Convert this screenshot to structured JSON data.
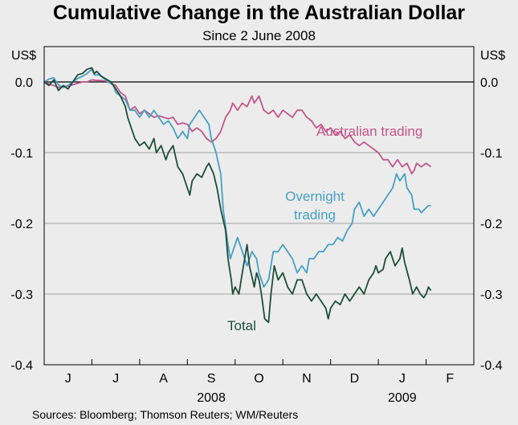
{
  "chart_data": {
    "type": "line",
    "title": "Cumulative Change in the Australian Dollar",
    "subtitle": "Since 2 June 2008",
    "unit_left": "US$",
    "unit_right": "US$",
    "ylim": [
      -0.4,
      0.05
    ],
    "yticks": [
      0.0,
      -0.1,
      -0.2,
      -0.3,
      -0.4
    ],
    "ytick_labels": [
      "0.0",
      "-0.1",
      "-0.2",
      "-0.3",
      "-0.4"
    ],
    "x_start_month_index": 0,
    "x_end_month_index": 9,
    "months": [
      {
        "label": "J",
        "index": 0
      },
      {
        "label": "J",
        "index": 1
      },
      {
        "label": "A",
        "index": 2
      },
      {
        "label": "S",
        "index": 3
      },
      {
        "label": "O",
        "index": 4
      },
      {
        "label": "N",
        "index": 5
      },
      {
        "label": "D",
        "index": 6
      },
      {
        "label": "J",
        "index": 7
      },
      {
        "label": "F",
        "index": 8
      }
    ],
    "years": [
      {
        "label": "2008",
        "position": 3.5
      },
      {
        "label": "2009",
        "position": 7.5
      }
    ],
    "series": [
      {
        "name": "Total",
        "label": "Total",
        "color": "#1e4d3a",
        "points": [
          [
            0,
            0.0
          ],
          [
            0.1,
            -0.005
          ],
          [
            0.2,
            0.003
          ],
          [
            0.3,
            -0.012
          ],
          [
            0.4,
            -0.005
          ],
          [
            0.5,
            -0.01
          ],
          [
            0.6,
            0.0
          ],
          [
            0.7,
            0.01
          ],
          [
            0.8,
            0.012
          ],
          [
            0.9,
            0.018
          ],
          [
            1.0,
            0.02
          ],
          [
            1.05,
            0.012
          ],
          [
            1.1,
            0.015
          ],
          [
            1.2,
            0.008
          ],
          [
            1.3,
            0.004
          ],
          [
            1.4,
            0.0
          ],
          [
            1.5,
            -0.01
          ],
          [
            1.6,
            -0.02
          ],
          [
            1.7,
            -0.035
          ],
          [
            1.75,
            -0.05
          ],
          [
            1.8,
            -0.06
          ],
          [
            1.9,
            -0.08
          ],
          [
            2.0,
            -0.09
          ],
          [
            2.1,
            -0.085
          ],
          [
            2.2,
            -0.095
          ],
          [
            2.3,
            -0.08
          ],
          [
            2.35,
            -0.1
          ],
          [
            2.45,
            -0.09
          ],
          [
            2.55,
            -0.11
          ],
          [
            2.6,
            -0.1
          ],
          [
            2.7,
            -0.09
          ],
          [
            2.8,
            -0.12
          ],
          [
            2.9,
            -0.13
          ],
          [
            3.0,
            -0.15
          ],
          [
            3.05,
            -0.16
          ],
          [
            3.1,
            -0.14
          ],
          [
            3.2,
            -0.13
          ],
          [
            3.3,
            -0.135
          ],
          [
            3.4,
            -0.12
          ],
          [
            3.45,
            -0.115
          ],
          [
            3.55,
            -0.13
          ],
          [
            3.62,
            -0.15
          ],
          [
            3.7,
            -0.18
          ],
          [
            3.8,
            -0.21
          ],
          [
            3.85,
            -0.25
          ],
          [
            3.92,
            -0.28
          ],
          [
            3.95,
            -0.3
          ],
          [
            4.0,
            -0.29
          ],
          [
            4.08,
            -0.3
          ],
          [
            4.15,
            -0.27
          ],
          [
            4.2,
            -0.25
          ],
          [
            4.25,
            -0.23
          ],
          [
            4.3,
            -0.26
          ],
          [
            4.4,
            -0.29
          ],
          [
            4.45,
            -0.27
          ],
          [
            4.5,
            -0.28
          ],
          [
            4.55,
            -0.3
          ],
          [
            4.62,
            -0.335
          ],
          [
            4.7,
            -0.34
          ],
          [
            4.75,
            -0.3
          ],
          [
            4.82,
            -0.26
          ],
          [
            4.9,
            -0.28
          ],
          [
            5.0,
            -0.27
          ],
          [
            5.1,
            -0.29
          ],
          [
            5.2,
            -0.3
          ],
          [
            5.3,
            -0.28
          ],
          [
            5.4,
            -0.28
          ],
          [
            5.5,
            -0.3
          ],
          [
            5.6,
            -0.31
          ],
          [
            5.7,
            -0.3
          ],
          [
            5.8,
            -0.31
          ],
          [
            5.9,
            -0.32
          ],
          [
            5.95,
            -0.335
          ],
          [
            6.0,
            -0.32
          ],
          [
            6.1,
            -0.31
          ],
          [
            6.2,
            -0.315
          ],
          [
            6.3,
            -0.3
          ],
          [
            6.4,
            -0.31
          ],
          [
            6.5,
            -0.3
          ],
          [
            6.6,
            -0.29
          ],
          [
            6.7,
            -0.3
          ],
          [
            6.8,
            -0.28
          ],
          [
            6.9,
            -0.27
          ],
          [
            6.95,
            -0.26
          ],
          [
            7.0,
            -0.27
          ],
          [
            7.1,
            -0.265
          ],
          [
            7.15,
            -0.25
          ],
          [
            7.25,
            -0.24
          ],
          [
            7.35,
            -0.26
          ],
          [
            7.45,
            -0.25
          ],
          [
            7.5,
            -0.235
          ],
          [
            7.55,
            -0.255
          ],
          [
            7.65,
            -0.28
          ],
          [
            7.72,
            -0.3
          ],
          [
            7.8,
            -0.29
          ],
          [
            7.88,
            -0.3
          ],
          [
            7.95,
            -0.305
          ],
          [
            8.0,
            -0.3
          ],
          [
            8.05,
            -0.29
          ],
          [
            8.1,
            -0.295
          ]
        ]
      },
      {
        "name": "Overnight trading",
        "label": "Overnight trading",
        "color": "#46a0c4",
        "points": [
          [
            0,
            0.0
          ],
          [
            0.1,
            0.004
          ],
          [
            0.2,
            0.006
          ],
          [
            0.3,
            -0.004
          ],
          [
            0.4,
            -0.008
          ],
          [
            0.5,
            -0.005
          ],
          [
            0.6,
            0.0
          ],
          [
            0.7,
            0.005
          ],
          [
            0.8,
            0.008
          ],
          [
            0.9,
            0.012
          ],
          [
            1.0,
            0.018
          ],
          [
            1.05,
            0.01
          ],
          [
            1.15,
            0.01
          ],
          [
            1.25,
            0.005
          ],
          [
            1.35,
            0.0
          ],
          [
            1.45,
            -0.005
          ],
          [
            1.5,
            -0.015
          ],
          [
            1.6,
            -0.02
          ],
          [
            1.7,
            -0.025
          ],
          [
            1.8,
            -0.04
          ],
          [
            1.9,
            -0.04
          ],
          [
            2.0,
            -0.05
          ],
          [
            2.1,
            -0.04
          ],
          [
            2.2,
            -0.05
          ],
          [
            2.3,
            -0.04
          ],
          [
            2.4,
            -0.05
          ],
          [
            2.5,
            -0.06
          ],
          [
            2.6,
            -0.055
          ],
          [
            2.7,
            -0.065
          ],
          [
            2.8,
            -0.08
          ],
          [
            2.9,
            -0.07
          ],
          [
            3.0,
            -0.08
          ],
          [
            3.05,
            -0.06
          ],
          [
            3.15,
            -0.05
          ],
          [
            3.25,
            -0.04
          ],
          [
            3.35,
            -0.05
          ],
          [
            3.45,
            -0.06
          ],
          [
            3.5,
            -0.08
          ],
          [
            3.6,
            -0.1
          ],
          [
            3.7,
            -0.13
          ],
          [
            3.75,
            -0.18
          ],
          [
            3.85,
            -0.23
          ],
          [
            3.9,
            -0.25
          ],
          [
            4.0,
            -0.23
          ],
          [
            4.05,
            -0.22
          ],
          [
            4.15,
            -0.24
          ],
          [
            4.25,
            -0.26
          ],
          [
            4.35,
            -0.24
          ],
          [
            4.45,
            -0.25
          ],
          [
            4.5,
            -0.27
          ],
          [
            4.55,
            -0.28
          ],
          [
            4.6,
            -0.29
          ],
          [
            4.7,
            -0.28
          ],
          [
            4.8,
            -0.24
          ],
          [
            4.9,
            -0.24
          ],
          [
            5.0,
            -0.23
          ],
          [
            5.1,
            -0.24
          ],
          [
            5.2,
            -0.25
          ],
          [
            5.3,
            -0.27
          ],
          [
            5.4,
            -0.26
          ],
          [
            5.5,
            -0.27
          ],
          [
            5.55,
            -0.25
          ],
          [
            5.65,
            -0.25
          ],
          [
            5.75,
            -0.24
          ],
          [
            5.85,
            -0.24
          ],
          [
            5.95,
            -0.23
          ],
          [
            6.05,
            -0.23
          ],
          [
            6.15,
            -0.22
          ],
          [
            6.25,
            -0.225
          ],
          [
            6.35,
            -0.21
          ],
          [
            6.45,
            -0.2
          ],
          [
            6.5,
            -0.18
          ],
          [
            6.6,
            -0.17
          ],
          [
            6.7,
            -0.19
          ],
          [
            6.8,
            -0.18
          ],
          [
            6.9,
            -0.19
          ],
          [
            7.0,
            -0.18
          ],
          [
            7.1,
            -0.17
          ],
          [
            7.2,
            -0.16
          ],
          [
            7.3,
            -0.15
          ],
          [
            7.38,
            -0.13
          ],
          [
            7.45,
            -0.14
          ],
          [
            7.55,
            -0.13
          ],
          [
            7.6,
            -0.15
          ],
          [
            7.7,
            -0.16
          ],
          [
            7.75,
            -0.18
          ],
          [
            7.85,
            -0.18
          ],
          [
            7.9,
            -0.185
          ],
          [
            8.0,
            -0.178
          ],
          [
            8.05,
            -0.175
          ],
          [
            8.1,
            -0.175
          ]
        ]
      },
      {
        "name": "Australian trading",
        "label": "Australian trading",
        "color": "#c4558a",
        "points": [
          [
            0,
            0.0
          ],
          [
            0.1,
            -0.003
          ],
          [
            0.2,
            -0.005
          ],
          [
            0.3,
            -0.008
          ],
          [
            0.4,
            -0.006
          ],
          [
            0.5,
            -0.006
          ],
          [
            0.6,
            -0.004
          ],
          [
            0.7,
            -0.002
          ],
          [
            0.8,
            0.0
          ],
          [
            0.9,
            0.0
          ],
          [
            1.0,
            0.003
          ],
          [
            1.1,
            0.002
          ],
          [
            1.2,
            0.002
          ],
          [
            1.3,
            0.001
          ],
          [
            1.4,
            -0.002
          ],
          [
            1.5,
            -0.005
          ],
          [
            1.6,
            -0.015
          ],
          [
            1.7,
            -0.02
          ],
          [
            1.8,
            -0.04
          ],
          [
            1.9,
            -0.035
          ],
          [
            2.0,
            -0.045
          ],
          [
            2.1,
            -0.04
          ],
          [
            2.2,
            -0.045
          ],
          [
            2.3,
            -0.05
          ],
          [
            2.4,
            -0.048
          ],
          [
            2.5,
            -0.05
          ],
          [
            2.6,
            -0.052
          ],
          [
            2.7,
            -0.05
          ],
          [
            2.8,
            -0.06
          ],
          [
            2.9,
            -0.058
          ],
          [
            3.0,
            -0.06
          ],
          [
            3.1,
            -0.07
          ],
          [
            3.2,
            -0.065
          ],
          [
            3.3,
            -0.07
          ],
          [
            3.4,
            -0.08
          ],
          [
            3.5,
            -0.085
          ],
          [
            3.6,
            -0.08
          ],
          [
            3.7,
            -0.07
          ],
          [
            3.8,
            -0.05
          ],
          [
            3.9,
            -0.04
          ],
          [
            3.95,
            -0.03
          ],
          [
            4.05,
            -0.04
          ],
          [
            4.15,
            -0.03
          ],
          [
            4.25,
            -0.035
          ],
          [
            4.35,
            -0.02
          ],
          [
            4.4,
            -0.03
          ],
          [
            4.45,
            -0.025
          ],
          [
            4.5,
            -0.02
          ],
          [
            4.55,
            -0.03
          ],
          [
            4.6,
            -0.04
          ],
          [
            4.7,
            -0.045
          ],
          [
            4.8,
            -0.04
          ],
          [
            4.9,
            -0.05
          ],
          [
            5.0,
            -0.04
          ],
          [
            5.1,
            -0.045
          ],
          [
            5.2,
            -0.05
          ],
          [
            5.3,
            -0.04
          ],
          [
            5.4,
            -0.04
          ],
          [
            5.5,
            -0.05
          ],
          [
            5.6,
            -0.055
          ],
          [
            5.7,
            -0.065
          ],
          [
            5.8,
            -0.06
          ],
          [
            5.9,
            -0.07
          ],
          [
            6.0,
            -0.065
          ],
          [
            6.1,
            -0.075
          ],
          [
            6.2,
            -0.07
          ],
          [
            6.3,
            -0.08
          ],
          [
            6.4,
            -0.075
          ],
          [
            6.5,
            -0.085
          ],
          [
            6.6,
            -0.09
          ],
          [
            6.7,
            -0.085
          ],
          [
            6.8,
            -0.09
          ],
          [
            6.9,
            -0.095
          ],
          [
            7.0,
            -0.1
          ],
          [
            7.1,
            -0.11
          ],
          [
            7.2,
            -0.11
          ],
          [
            7.3,
            -0.12
          ],
          [
            7.4,
            -0.11
          ],
          [
            7.5,
            -0.12
          ],
          [
            7.6,
            -0.115
          ],
          [
            7.7,
            -0.13
          ],
          [
            7.75,
            -0.125
          ],
          [
            7.8,
            -0.115
          ],
          [
            7.9,
            -0.12
          ],
          [
            8.0,
            -0.115
          ],
          [
            8.1,
            -0.12
          ]
        ]
      }
    ],
    "source": "Sources: Bloomberg; Thomson Reuters; WM/Reuters"
  }
}
